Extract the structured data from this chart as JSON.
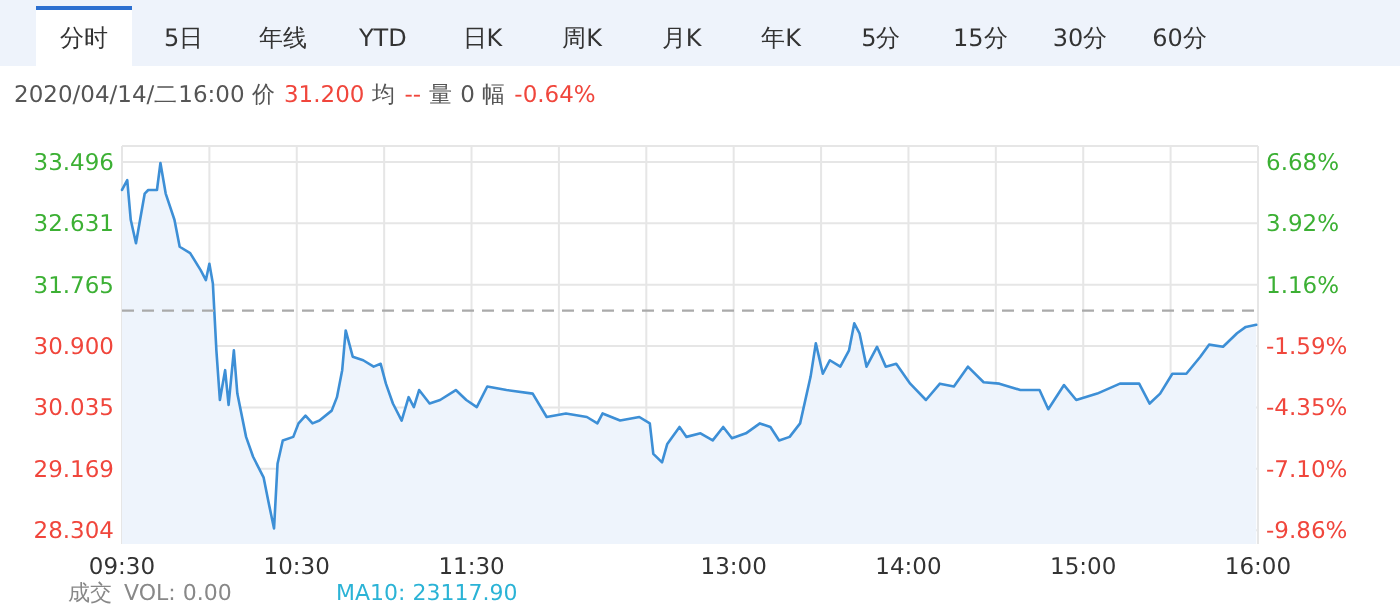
{
  "chart_data": {
    "type": "area",
    "grid": true,
    "x": [
      9.5,
      9.53,
      9.55,
      9.58,
      9.6,
      9.63,
      9.65,
      9.7,
      9.72,
      9.75,
      9.8,
      9.83,
      9.89,
      9.95,
      9.98,
      10.0,
      10.02,
      10.04,
      10.06,
      10.09,
      10.11,
      10.14,
      10.16,
      10.21,
      10.25,
      10.31,
      10.34,
      10.37,
      10.39,
      10.42,
      10.48,
      10.51,
      10.55,
      10.59,
      10.63,
      10.7,
      10.73,
      10.76,
      10.78,
      10.82,
      10.88,
      10.94,
      10.98,
      11.01,
      11.05,
      11.1,
      11.14,
      11.17,
      11.2,
      11.26,
      11.32,
      11.41,
      11.47,
      11.53,
      11.59,
      11.7,
      11.85,
      11.93,
      12.04,
      12.16,
      12.22,
      12.25,
      12.35,
      12.46,
      12.52,
      12.54,
      12.59,
      12.62,
      12.69,
      12.73,
      12.81,
      12.88,
      12.94,
      12.99,
      13.07,
      13.15,
      13.21,
      13.26,
      13.32,
      13.38,
      13.44,
      13.47,
      13.51,
      13.55,
      13.61,
      13.66,
      13.69,
      13.72,
      13.76,
      13.82,
      13.87,
      13.93,
      14.01,
      14.1,
      14.18,
      14.26,
      14.34,
      14.43,
      14.52,
      14.64,
      14.75,
      14.8,
      14.89,
      14.96,
      15.08,
      15.21,
      15.32,
      15.38,
      15.44,
      15.51,
      15.59,
      15.67,
      15.72,
      15.8,
      15.88,
      15.93,
      15.99
    ],
    "series": [
      {
        "color": "#3d8fd6",
        "values": [
          33.1,
          33.24,
          32.68,
          32.35,
          32.63,
          33.05,
          33.1,
          33.1,
          33.48,
          33.05,
          32.68,
          32.3,
          32.21,
          31.97,
          31.83,
          32.06,
          31.78,
          30.84,
          30.14,
          30.56,
          30.07,
          30.84,
          30.23,
          29.62,
          29.34,
          29.05,
          28.68,
          28.33,
          29.24,
          29.57,
          29.62,
          29.81,
          29.92,
          29.81,
          29.85,
          29.99,
          30.18,
          30.56,
          31.12,
          30.75,
          30.7,
          30.61,
          30.65,
          30.37,
          30.09,
          29.85,
          30.18,
          30.04,
          30.28,
          30.09,
          30.14,
          30.28,
          30.14,
          30.04,
          30.33,
          30.28,
          30.23,
          29.9,
          29.95,
          29.9,
          29.81,
          29.95,
          29.85,
          29.9,
          29.81,
          29.38,
          29.26,
          29.52,
          29.76,
          29.62,
          29.67,
          29.57,
          29.76,
          29.6,
          29.67,
          29.81,
          29.76,
          29.57,
          29.62,
          29.81,
          30.47,
          30.94,
          30.51,
          30.7,
          30.61,
          30.84,
          31.22,
          31.08,
          30.61,
          30.89,
          30.61,
          30.65,
          30.37,
          30.14,
          30.37,
          30.33,
          30.61,
          30.39,
          30.37,
          30.28,
          30.28,
          30.01,
          30.35,
          30.14,
          30.23,
          30.37,
          30.37,
          30.09,
          30.23,
          30.51,
          30.51,
          30.75,
          30.92,
          30.89,
          31.08,
          31.17,
          31.2
        ]
      }
    ],
    "xlim": [
      9.5,
      16
    ],
    "xticks": [
      {
        "value": 9.5,
        "label": "09:30"
      },
      {
        "value": 10,
        "label": null
      },
      {
        "value": 10.5,
        "label": "10:30"
      },
      {
        "value": 11,
        "label": null
      },
      {
        "value": 11.5,
        "label": "11:30"
      },
      {
        "value": 12,
        "label": null
      },
      {
        "value": 12.5,
        "label": null
      },
      {
        "value": 13,
        "label": "13:00"
      },
      {
        "value": 13.5,
        "label": null
      },
      {
        "value": 14,
        "label": "14:00"
      },
      {
        "value": 14.5,
        "label": null
      },
      {
        "value": 15,
        "label": "15:00"
      },
      {
        "value": 15.5,
        "label": null
      },
      {
        "value": 16,
        "label": "16:00"
      }
    ],
    "ylim": [
      28.11,
      33.72
    ],
    "yticks": [
      28.304,
      29.169,
      30.035,
      {
        "value": 30.9,
        "label": "30.900"
      },
      31.765,
      32.631,
      33.496
    ],
    "y2lim": [
      -10.48,
      7.39
    ],
    "y2ticks": [
      {
        "value": -9.86,
        "label": "-9.86%"
      },
      {
        "value": -7.1,
        "label": "-7.10%"
      },
      {
        "value": -4.35,
        "label": "-4.35%"
      },
      {
        "value": -1.59,
        "label": "-1.59%"
      },
      {
        "value": 1.16,
        "label": "1.16%"
      },
      {
        "value": 3.92,
        "label": "3.92%"
      },
      {
        "value": 6.68,
        "label": "6.68%"
      }
    ],
    "ref_lines": [
      {
        "axis": "y",
        "value": 31.4,
        "color": "#aaaaaa",
        "line_style": "dashed"
      }
    ],
    "annotations": [
      "分时",
      "5日",
      "年线",
      "YTD",
      "日K",
      "周K",
      "月K",
      "年K",
      "5分",
      "15分",
      "30分",
      "60分",
      "2020/04/14/二16:00 价",
      "31.200",
      "均",
      "--",
      "量 0 幅",
      "-0.64%",
      "成交",
      "VOL: 0.00",
      "MA10: 23117.90"
    ]
  }
}
